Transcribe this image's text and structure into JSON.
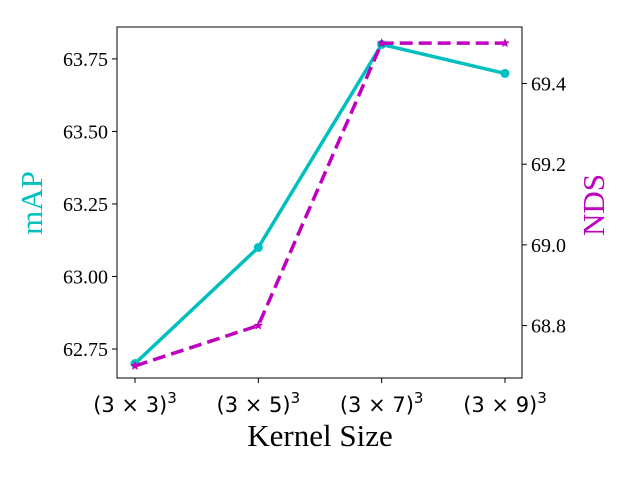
{
  "chart_data": {
    "type": "line",
    "title": "",
    "xlabel": "Kernel Size",
    "categories": [
      "(3 × 3)",
      "(3 × 5)",
      "(3 × 7)",
      "(3 × 9)"
    ],
    "category_exponent": "3",
    "y_left": {
      "label": "mAP",
      "color": "#00bfbf",
      "ylim": [
        62.65,
        63.86
      ],
      "ticks": [
        62.75,
        63.0,
        63.25,
        63.5,
        63.75
      ],
      "tick_labels": [
        "62.75",
        "63.00",
        "63.25",
        "63.50",
        "63.75"
      ]
    },
    "y_right": {
      "label": "NDS",
      "color": "#bf00bf",
      "ylim": [
        68.67,
        69.54
      ],
      "ticks": [
        68.8,
        69.0,
        69.2,
        69.4
      ],
      "tick_labels": [
        "68.8",
        "69.0",
        "69.2",
        "69.4"
      ]
    },
    "series": [
      {
        "name": "mAP",
        "axis": "left",
        "values": [
          62.7,
          63.1,
          63.8,
          63.7
        ],
        "color": "#00bfbf",
        "style": "solid",
        "marker": "circle"
      },
      {
        "name": "NDS",
        "axis": "right",
        "values": [
          68.7,
          68.8,
          69.5,
          69.5
        ],
        "color": "#bf00bf",
        "style": "dashed",
        "marker": "star"
      }
    ],
    "grid": false,
    "legend": "none"
  }
}
